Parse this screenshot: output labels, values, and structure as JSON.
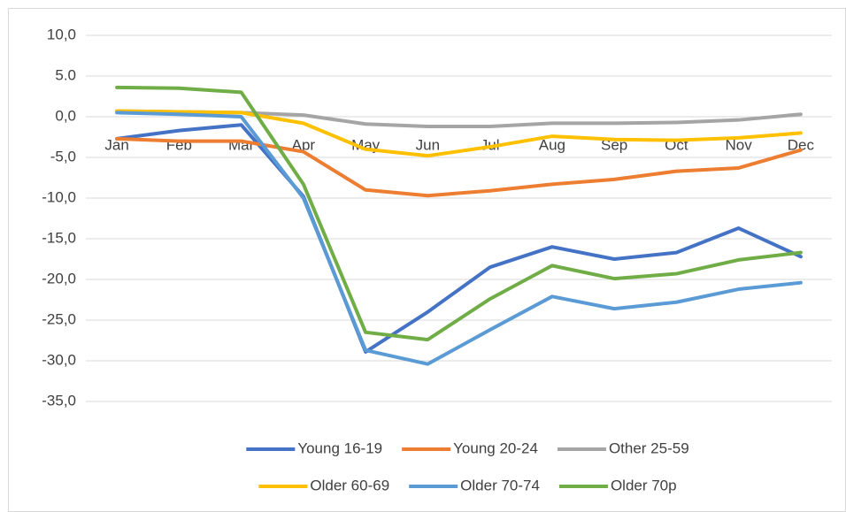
{
  "chart_data": {
    "type": "line",
    "categories": [
      "Jan",
      "Feb",
      "Mar",
      "Apr",
      "May",
      "Jun",
      "Jul",
      "Aug",
      "Sep",
      "Oct",
      "Nov",
      "Dec"
    ],
    "series": [
      {
        "name": "Young 16-19",
        "color": "#4472c4",
        "values": [
          -2.7,
          -1.7,
          -1.0,
          -9.8,
          -28.9,
          -24.0,
          -18.5,
          -16.0,
          -17.5,
          -16.7,
          -13.7,
          -17.2
        ]
      },
      {
        "name": "Young 20-24",
        "color": "#ed7d31",
        "values": [
          -2.7,
          -3.0,
          -3.0,
          -4.3,
          -9.0,
          -9.7,
          -9.1,
          -8.3,
          -7.7,
          -6.7,
          -6.3,
          -4.1
        ]
      },
      {
        "name": "Other 25-59",
        "color": "#a5a5a5",
        "values": [
          0.7,
          0.6,
          0.5,
          0.2,
          -0.9,
          -1.2,
          -1.2,
          -0.8,
          -0.8,
          -0.7,
          -0.4,
          0.3
        ]
      },
      {
        "name": "Older 60-69",
        "color": "#ffc000",
        "values": [
          0.7,
          0.6,
          0.5,
          -0.8,
          -4.0,
          -4.8,
          -3.7,
          -2.4,
          -2.8,
          -2.9,
          -2.6,
          -2.0
        ]
      },
      {
        "name": "Older 70-74",
        "color": "#5b9bd5",
        "values": [
          0.5,
          0.3,
          0.0,
          -10.0,
          -28.7,
          -30.4,
          -26.2,
          -22.1,
          -23.6,
          -22.8,
          -21.2,
          -20.4
        ]
      },
      {
        "name": "Older 70p",
        "color": "#70ad47",
        "values": [
          3.6,
          3.5,
          3.0,
          -8.3,
          -26.5,
          -27.4,
          -22.4,
          -18.3,
          -19.9,
          -19.3,
          -17.6,
          -16.7
        ]
      }
    ],
    "ylim": [
      -35,
      10
    ],
    "yticks": [
      {
        "value": -35,
        "label": "-35,0"
      },
      {
        "value": -30,
        "label": "-30,0"
      },
      {
        "value": -25,
        "label": "-25,0"
      },
      {
        "value": -20,
        "label": "-20,0"
      },
      {
        "value": -15,
        "label": "-15,0"
      },
      {
        "value": -10,
        "label": "-10,0"
      },
      {
        "value": -5,
        "label": "-5,0"
      },
      {
        "value": 0,
        "label": "0,0"
      },
      {
        "value": 5,
        "label": "5.0"
      },
      {
        "value": 10,
        "label": "10,0"
      }
    ],
    "grid": true,
    "legend": "bottom"
  }
}
